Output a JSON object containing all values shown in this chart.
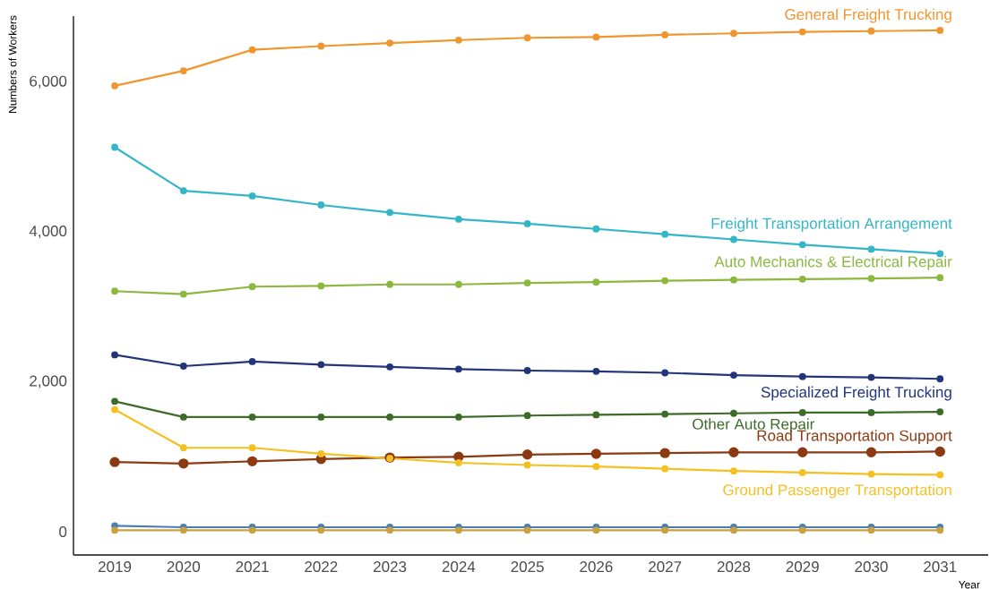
{
  "chart_data": {
    "type": "line",
    "xlabel": "Year",
    "ylabel": "Numbers of Workers",
    "x": [
      2019,
      2020,
      2021,
      2022,
      2023,
      2024,
      2025,
      2026,
      2027,
      2028,
      2029,
      2030,
      2031
    ],
    "xlim": [
      2018.4,
      2031.7
    ],
    "xticks": [
      2019,
      2020,
      2021,
      2022,
      2023,
      2024,
      2025,
      2026,
      2027,
      2028,
      2029,
      2030,
      2031
    ],
    "ylim": [
      -310,
      6880
    ],
    "yticks": [
      {
        "value": 0,
        "label": "0"
      },
      {
        "value": 2000,
        "label": "2,000"
      },
      {
        "value": 4000,
        "label": "4,000"
      },
      {
        "value": 6000,
        "label": "6,000"
      }
    ],
    "grid": false,
    "legend": false,
    "marker": "circle",
    "line_style": "solid",
    "series": [
      {
        "name": "General Freight Trucking",
        "color": "#f0962e",
        "values": [
          5950,
          6150,
          6430,
          6480,
          6520,
          6560,
          6590,
          6600,
          6630,
          6650,
          6670,
          6680,
          6690
        ]
      },
      {
        "name": "Freight Transportation Arrangement",
        "color": "#34b5c8",
        "values": [
          5130,
          4550,
          4480,
          4360,
          4260,
          4170,
          4110,
          4040,
          3970,
          3900,
          3830,
          3770,
          3710
        ]
      },
      {
        "name": "Auto Mechanics & Electrical Repair",
        "color": "#8cb840",
        "values": [
          3210,
          3170,
          3270,
          3280,
          3300,
          3300,
          3320,
          3330,
          3350,
          3360,
          3370,
          3380,
          3390
        ]
      },
      {
        "name": "Specialized Freight Trucking",
        "color": "#23357a",
        "values": [
          2360,
          2210,
          2270,
          2230,
          2200,
          2170,
          2150,
          2140,
          2120,
          2090,
          2070,
          2060,
          2040
        ]
      },
      {
        "name": "Other Auto Repair",
        "color": "#3d6b28",
        "values": [
          1740,
          1530,
          1530,
          1530,
          1530,
          1530,
          1550,
          1560,
          1570,
          1580,
          1590,
          1590,
          1600
        ]
      },
      {
        "name": "Road Transportation Support",
        "color": "#8b3a12",
        "values": [
          930,
          910,
          940,
          970,
          990,
          1000,
          1030,
          1040,
          1050,
          1060,
          1060,
          1060,
          1070
        ]
      },
      {
        "name": "Ground Passenger Transportation",
        "color": "#f5c020",
        "values": [
          1630,
          1120,
          1120,
          1040,
          980,
          920,
          890,
          870,
          840,
          810,
          790,
          770,
          760
        ]
      },
      {
        "color": "#4a7fb5",
        "values": [
          80,
          60,
          60,
          60,
          60,
          60,
          60,
          60,
          60,
          60,
          60,
          60,
          60
        ]
      },
      {
        "color": "#c9a23f",
        "values": [
          20,
          20,
          20,
          20,
          20,
          20,
          20,
          20,
          20,
          20,
          20,
          20,
          20
        ]
      }
    ]
  }
}
